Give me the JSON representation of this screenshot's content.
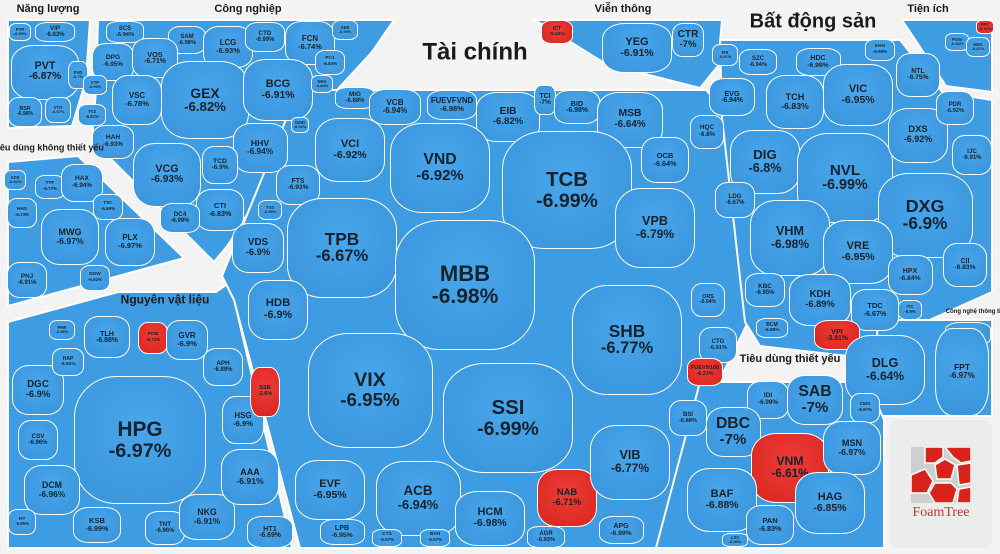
{
  "colors": {
    "down": "#3e9ce2",
    "down_strong": "#e3342f",
    "text": "#16222e"
  },
  "brand": "FoamTree",
  "chart_data": {
    "type": "treemap",
    "groups": [
      {
        "name": "Năng lượng",
        "stocks": [
          [
            "PVP",
            "-6.99%",
            "blue"
          ],
          [
            "VIP",
            "-6.83%",
            "blue"
          ],
          [
            "PVT",
            "-6.87%",
            "blue"
          ],
          [
            "BSR",
            "-6.98%",
            "blue"
          ],
          [
            "VTO",
            "-6.67%",
            "blue"
          ],
          [
            "PVD",
            "-6.7%",
            "blue"
          ]
        ]
      },
      {
        "name": "Công nghiệp",
        "stocks": [
          [
            "SCS",
            "-6.94%",
            "blue"
          ],
          [
            "SAM",
            "-6.98%",
            "blue"
          ],
          [
            "LCG",
            "-6.93%",
            "blue"
          ],
          [
            "CTD",
            "-6.99%",
            "blue"
          ],
          [
            "FCN",
            "-6.74%",
            "blue"
          ],
          [
            "GEE",
            "-6.99%",
            "blue"
          ],
          [
            "PC1",
            "-6.84%",
            "blue"
          ],
          [
            "DPG",
            "-6.95%",
            "blue"
          ],
          [
            "VOS",
            "-6.71%",
            "blue"
          ],
          [
            "GEX",
            "-6.82%",
            "blue"
          ],
          [
            "BCG",
            "-6.91%",
            "blue"
          ],
          [
            "VSC",
            "-6.78%",
            "blue"
          ],
          [
            "VTP",
            "-6.99%",
            "blue"
          ],
          [
            "TV2",
            "-6.91%",
            "blue"
          ],
          [
            "HAH",
            "-6.93%",
            "blue"
          ],
          [
            "VCG",
            "-6.93%",
            "blue"
          ],
          [
            "HHV",
            "-6.94%",
            "blue"
          ],
          [
            "TCD",
            "-6.9%",
            "blue"
          ],
          [
            "CTI",
            "-6.83%",
            "blue"
          ],
          [
            "DC4",
            "-6.99%",
            "blue"
          ],
          [
            "NHA",
            "-6.84%",
            "blue"
          ],
          [
            "GMD",
            "-6.92%",
            "blue"
          ]
        ]
      },
      {
        "name": "Tiêu dùng không thiết yếu",
        "stocks": [
          [
            "ADS",
            "-6.92%",
            "blue"
          ],
          [
            "TTF",
            "-6.77%",
            "blue"
          ],
          [
            "HAX",
            "-6.94%",
            "blue"
          ],
          [
            "HHS",
            "-6.73%",
            "blue"
          ],
          [
            "MWG",
            "-6.97%",
            "blue"
          ],
          [
            "TSC",
            "-6.69%",
            "blue"
          ],
          [
            "PLX",
            "-6.97%",
            "blue"
          ],
          [
            "PNJ",
            "-6.91%",
            "blue"
          ],
          [
            "DGW",
            "-6.92%",
            "blue"
          ]
        ]
      },
      {
        "name": "Nguyên vật liệu",
        "stocks": [
          [
            "TLH",
            "-6.88%",
            "blue"
          ],
          [
            "PCM",
            "-6.71%",
            "red"
          ],
          [
            "GVR",
            "-6.9%",
            "blue"
          ],
          [
            "APH",
            "-6.89%",
            "blue"
          ],
          [
            "DGC",
            "-6.9%",
            "blue"
          ],
          [
            "HAP",
            "-6.94%",
            "blue"
          ],
          [
            "HPG",
            "-6.97%",
            "blue"
          ],
          [
            "CSV",
            "-6.96%",
            "blue"
          ],
          [
            "DCM",
            "-6.96%",
            "blue"
          ],
          [
            "KSB",
            "-6.99%",
            "blue"
          ],
          [
            "TNT",
            "-6.96%",
            "blue"
          ],
          [
            "NKG",
            "-6.91%",
            "blue"
          ],
          [
            "HSG",
            "-6.9%",
            "blue"
          ],
          [
            "AAA",
            "-6.91%",
            "blue"
          ],
          [
            "HT1",
            "-6.69%",
            "blue"
          ],
          [
            "FIT",
            "-6.85%",
            "blue"
          ],
          [
            "PHR",
            "-6.98%",
            "blue"
          ]
        ]
      },
      {
        "name": "Tài chính",
        "stocks": [
          [
            "MIG",
            "-6.88%",
            "blue"
          ],
          [
            "VCB",
            "-6.94%",
            "blue"
          ],
          [
            "FUEVFVND",
            "-6.98%",
            "blue"
          ],
          [
            "EIB",
            "-6.82%",
            "blue"
          ],
          [
            "TCI",
            "-7%",
            "blue"
          ],
          [
            "BID",
            "-6.98%",
            "blue"
          ],
          [
            "MSB",
            "-6.64%",
            "blue"
          ],
          [
            "VCI",
            "-6.92%",
            "blue"
          ],
          [
            "VND",
            "-6.92%",
            "blue"
          ],
          [
            "TCB",
            "-6.99%",
            "blue"
          ],
          [
            "OCB",
            "-6.64%",
            "blue"
          ],
          [
            "FTS",
            "-6.93%",
            "blue"
          ],
          [
            "VDS",
            "-6.9%",
            "blue"
          ],
          [
            "TVS",
            "-6.98%",
            "blue"
          ],
          [
            "TPB",
            "-6.67%",
            "blue"
          ],
          [
            "MBB",
            "-6.98%",
            "blue"
          ],
          [
            "VPB",
            "-6.79%",
            "blue"
          ],
          [
            "HDB",
            "-6.9%",
            "blue"
          ],
          [
            "SHB",
            "-6.77%",
            "blue"
          ],
          [
            "SSB",
            "-2.6%",
            "red"
          ],
          [
            "VIX",
            "-6.95%",
            "blue"
          ],
          [
            "SSI",
            "-6.99%",
            "blue"
          ],
          [
            "ORS",
            "-6.94%",
            "blue"
          ],
          [
            "CTG",
            "-6.91%",
            "blue"
          ],
          [
            "FUEVN100",
            "-6.23%",
            "red"
          ],
          [
            "BSI",
            "-6.88%",
            "blue"
          ],
          [
            "EVF",
            "-6.95%",
            "blue"
          ],
          [
            "ACB",
            "-6.94%",
            "blue"
          ],
          [
            "HCM",
            "-6.98%",
            "blue"
          ],
          [
            "NAB",
            "-6.71%",
            "red"
          ],
          [
            "VIB",
            "-6.77%",
            "blue"
          ],
          [
            "LPB",
            "-6.95%",
            "blue"
          ],
          [
            "AGR",
            "-6.93%",
            "blue"
          ],
          [
            "APG",
            "-6.99%",
            "blue"
          ],
          [
            "CTS",
            "-6.97%",
            "blue"
          ],
          [
            "BVH",
            "-6.97%",
            "blue"
          ]
        ]
      },
      {
        "name": "Viễn thông",
        "stocks": [
          [
            "ICT",
            "-5.34%",
            "red"
          ],
          [
            "YEG",
            "-6.91%",
            "blue"
          ],
          [
            "CTR",
            "-7%",
            "blue"
          ]
        ]
      },
      {
        "name": "Bất động sản",
        "stocks": [
          [
            "FIR",
            "-6.97%",
            "blue"
          ],
          [
            "SZC",
            "-6.94%",
            "blue"
          ],
          [
            "HDC",
            "-6.99%",
            "blue"
          ],
          [
            "KHG",
            "-6.98%",
            "blue"
          ],
          [
            "NTL",
            "-6.75%",
            "blue"
          ],
          [
            "EVG",
            "-6.94%",
            "blue"
          ],
          [
            "TCH",
            "-6.83%",
            "blue"
          ],
          [
            "VIC",
            "-6.95%",
            "blue"
          ],
          [
            "HQC",
            "-6.8%",
            "blue"
          ],
          [
            "DIG",
            "-6.8%",
            "blue"
          ],
          [
            "NVL",
            "-6.99%",
            "blue"
          ],
          [
            "DXS",
            "-6.92%",
            "blue"
          ],
          [
            "PDR",
            "-6.92%",
            "blue"
          ],
          [
            "IJC",
            "-6.91%",
            "blue"
          ],
          [
            "DXG",
            "-6.9%",
            "blue"
          ],
          [
            "LDG",
            "-6.67%",
            "blue"
          ],
          [
            "VHM",
            "-6.98%",
            "blue"
          ],
          [
            "VRE",
            "-6.95%",
            "blue"
          ],
          [
            "HPX",
            "-6.84%",
            "blue"
          ],
          [
            "CII",
            "-6.83%",
            "blue"
          ],
          [
            "KBC",
            "-6.95%",
            "blue"
          ],
          [
            "KDH",
            "-6.89%",
            "blue"
          ],
          [
            "TDC",
            "-6.67%",
            "blue"
          ],
          [
            "BCM",
            "-6.88%",
            "blue"
          ],
          [
            "VPI",
            "-3.91%",
            "red"
          ],
          [
            "ITC",
            "-6.9%",
            "blue"
          ]
        ]
      },
      {
        "name": "Tiện ích",
        "stocks": [
          [
            "POW",
            "-6.84%",
            "blue"
          ],
          [
            "HDG",
            "-6.87%",
            "blue"
          ],
          [
            "PPC",
            "-6.91%",
            "red"
          ]
        ]
      },
      {
        "name": "Công nghệ thông tin",
        "stocks": [
          [
            "ELC",
            "-6.85%",
            "blue"
          ],
          [
            "DLG",
            "-6.64%",
            "blue"
          ],
          [
            "FPT",
            "-6.97%",
            "blue"
          ]
        ]
      },
      {
        "name": "Tiêu dùng thiết yếu",
        "stocks": [
          [
            "IDI",
            "-6.99%",
            "blue"
          ],
          [
            "SAB",
            "-7%",
            "blue"
          ],
          [
            "CMX",
            "-6.97%",
            "blue"
          ],
          [
            "DBC",
            "-7%",
            "blue"
          ],
          [
            "VNM",
            "-6.61%",
            "red"
          ],
          [
            "MSN",
            "-6.97%",
            "blue"
          ],
          [
            "BAF",
            "-6.88%",
            "blue"
          ],
          [
            "HAG",
            "-6.85%",
            "blue"
          ],
          [
            "PAN",
            "-6.83%",
            "blue"
          ],
          [
            "LSS",
            "-6.96%",
            "blue"
          ]
        ]
      }
    ]
  }
}
